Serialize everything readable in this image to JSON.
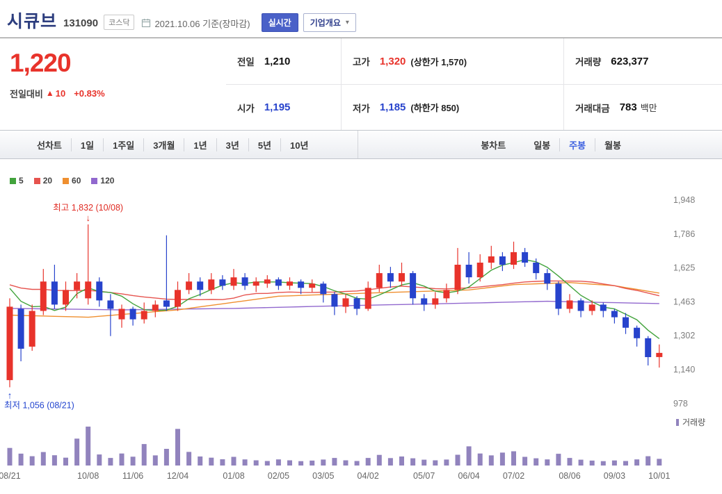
{
  "colors": {
    "title_navy": "#2c3d7e",
    "price_up_red": "#e8332b",
    "price_down_blue": "#2743cc",
    "accent_blue_bg": "#4a61c8",
    "selected_tab_blue": "#3f62e0",
    "ma5_green": "#42a33c",
    "ma20_red": "#e6534e",
    "ma60_orange": "#ef8f2f",
    "ma120_purple": "#9168ce",
    "volume_purple": "#9183bd",
    "annotation_red": "#e02a22",
    "annotation_blue": "#2345cf"
  },
  "header": {
    "stock_name": "시큐브",
    "stock_code": "131090",
    "market_badge": "코스닥",
    "date_text": "2021.10.06 기준(장마감)",
    "realtime_button": "실시간",
    "overview_button": "기업개요"
  },
  "price_summary": {
    "current_price": "1,220",
    "change_label": "전일대비",
    "change_direction": "▲",
    "change_value": "10",
    "change_percent": "+0.83%"
  },
  "fields": {
    "prev_close": {
      "label": "전일",
      "value": "1,210"
    },
    "high": {
      "label": "고가",
      "value": "1,320",
      "sub": "(상한가 1,570)"
    },
    "volume": {
      "label": "거래량",
      "value": "623,377"
    },
    "open": {
      "label": "시가",
      "value": "1,195"
    },
    "low": {
      "label": "저가",
      "value": "1,185",
      "sub": "(하한가 850)"
    },
    "trade_value": {
      "label": "거래대금",
      "value": "783",
      "unit": "백만"
    }
  },
  "period_tabs": [
    "선차트",
    "1일",
    "1주일",
    "3개월",
    "1년",
    "3년",
    "5년",
    "10년"
  ],
  "candle_tabs": {
    "label": "봉차트",
    "options": [
      "일봉",
      "주봉",
      "월봉"
    ],
    "selected": "주봉"
  },
  "chart_data": {
    "type": "candlestick",
    "interval": "weekly",
    "ma_periods": [
      5,
      20,
      60,
      120
    ],
    "ylim": [
      978,
      1948
    ],
    "y_ticks": [
      {
        "value": 978,
        "label": "978"
      },
      {
        "value": 1140,
        "label": "1,140"
      },
      {
        "value": 1302,
        "label": "1,302"
      },
      {
        "value": 1463,
        "label": "1,463"
      },
      {
        "value": 1625,
        "label": "1,625"
      },
      {
        "value": 1786,
        "label": "1,786"
      },
      {
        "value": 1948,
        "label": "1,948"
      }
    ],
    "x_labels": [
      {
        "index": 0,
        "label": "08/21"
      },
      {
        "index": 7,
        "label": "10/08"
      },
      {
        "index": 11,
        "label": "11/06"
      },
      {
        "index": 15,
        "label": "12/04"
      },
      {
        "index": 20,
        "label": "01/08"
      },
      {
        "index": 24,
        "label": "02/05"
      },
      {
        "index": 28,
        "label": "03/05"
      },
      {
        "index": 32,
        "label": "04/02"
      },
      {
        "index": 37,
        "label": "05/07"
      },
      {
        "index": 41,
        "label": "06/04"
      },
      {
        "index": 45,
        "label": "07/02"
      },
      {
        "index": 50,
        "label": "08/06"
      },
      {
        "index": 54,
        "label": "09/03"
      },
      {
        "index": 58,
        "label": "10/01"
      }
    ],
    "annotations": {
      "max": {
        "index": 7,
        "value": 1832,
        "text": "최고 1,832 (10/08)"
      },
      "min": {
        "index": 0,
        "value": 1056,
        "text": "최저 1,056 (08/21)"
      }
    },
    "volume_legend": "거래량",
    "candles": [
      [
        1090,
        1480,
        1056,
        1440,
        1210000
      ],
      [
        1430,
        1450,
        1180,
        1240,
        820000
      ],
      [
        1250,
        1450,
        1230,
        1420,
        640000
      ],
      [
        1420,
        1620,
        1400,
        1560,
        930000
      ],
      [
        1560,
        1640,
        1430,
        1450,
        710000
      ],
      [
        1450,
        1560,
        1420,
        1520,
        540000
      ],
      [
        1520,
        1600,
        1480,
        1560,
        1850000
      ],
      [
        1480,
        1832,
        1450,
        1560,
        2680000
      ],
      [
        1560,
        1580,
        1440,
        1470,
        760000
      ],
      [
        1470,
        1500,
        1300,
        1430,
        520000
      ],
      [
        1380,
        1450,
        1340,
        1430,
        830000
      ],
      [
        1430,
        1440,
        1350,
        1380,
        610000
      ],
      [
        1380,
        1460,
        1360,
        1420,
        1480000
      ],
      [
        1420,
        1470,
        1390,
        1450,
        700000
      ],
      [
        1470,
        1780,
        1420,
        1440,
        1150000
      ],
      [
        1440,
        1560,
        1420,
        1520,
        2520000
      ],
      [
        1520,
        1600,
        1500,
        1560,
        940000
      ],
      [
        1560,
        1580,
        1490,
        1520,
        620000
      ],
      [
        1520,
        1600,
        1500,
        1570,
        540000
      ],
      [
        1570,
        1590,
        1520,
        1540,
        430000
      ],
      [
        1540,
        1620,
        1520,
        1580,
        600000
      ],
      [
        1580,
        1600,
        1520,
        1540,
        420000
      ],
      [
        1540,
        1580,
        1510,
        1560,
        360000
      ],
      [
        1550,
        1590,
        1530,
        1570,
        310000
      ],
      [
        1570,
        1580,
        1520,
        1540,
        420000
      ],
      [
        1540,
        1580,
        1520,
        1560,
        360000
      ],
      [
        1560,
        1570,
        1500,
        1530,
        300000
      ],
      [
        1530,
        1570,
        1510,
        1550,
        340000
      ],
      [
        1550,
        1560,
        1460,
        1500,
        410000
      ],
      [
        1500,
        1510,
        1400,
        1440,
        520000
      ],
      [
        1440,
        1500,
        1410,
        1480,
        360000
      ],
      [
        1480,
        1490,
        1400,
        1430,
        310000
      ],
      [
        1430,
        1560,
        1420,
        1530,
        520000
      ],
      [
        1530,
        1640,
        1510,
        1600,
        730000
      ],
      [
        1600,
        1630,
        1530,
        1560,
        510000
      ],
      [
        1560,
        1650,
        1540,
        1600,
        620000
      ],
      [
        1600,
        1610,
        1450,
        1480,
        500000
      ],
      [
        1480,
        1500,
        1420,
        1450,
        400000
      ],
      [
        1450,
        1510,
        1430,
        1480,
        360000
      ],
      [
        1480,
        1550,
        1460,
        1520,
        410000
      ],
      [
        1520,
        1720,
        1500,
        1640,
        740000
      ],
      [
        1640,
        1700,
        1550,
        1580,
        1320000
      ],
      [
        1580,
        1690,
        1560,
        1650,
        830000
      ],
      [
        1650,
        1730,
        1620,
        1680,
        700000
      ],
      [
        1680,
        1700,
        1610,
        1640,
        890000
      ],
      [
        1640,
        1750,
        1620,
        1700,
        980000
      ],
      [
        1700,
        1720,
        1630,
        1650,
        600000
      ],
      [
        1650,
        1670,
        1570,
        1600,
        500000
      ],
      [
        1600,
        1620,
        1520,
        1550,
        420000
      ],
      [
        1550,
        1560,
        1400,
        1430,
        810000
      ],
      [
        1430,
        1500,
        1410,
        1470,
        520000
      ],
      [
        1470,
        1480,
        1390,
        1420,
        400000
      ],
      [
        1420,
        1470,
        1400,
        1450,
        340000
      ],
      [
        1450,
        1460,
        1390,
        1420,
        300000
      ],
      [
        1420,
        1430,
        1360,
        1390,
        350000
      ],
      [
        1390,
        1410,
        1310,
        1340,
        310000
      ],
      [
        1340,
        1350,
        1250,
        1290,
        420000
      ],
      [
        1290,
        1300,
        1160,
        1200,
        640000
      ],
      [
        1200,
        1260,
        1150,
        1220,
        460000
      ]
    ],
    "ma_long_points": {
      "ma60": [
        [
          0,
          1400
        ],
        [
          7,
          1390
        ],
        [
          15,
          1425
        ],
        [
          24,
          1490
        ],
        [
          32,
          1505
        ],
        [
          41,
          1520
        ],
        [
          45,
          1545
        ],
        [
          50,
          1555
        ],
        [
          54,
          1540
        ],
        [
          58,
          1505
        ]
      ],
      "ma120": [
        [
          0,
          1432
        ],
        [
          10,
          1425
        ],
        [
          20,
          1432
        ],
        [
          30,
          1445
        ],
        [
          40,
          1456
        ],
        [
          48,
          1466
        ],
        [
          58,
          1455
        ]
      ]
    }
  }
}
